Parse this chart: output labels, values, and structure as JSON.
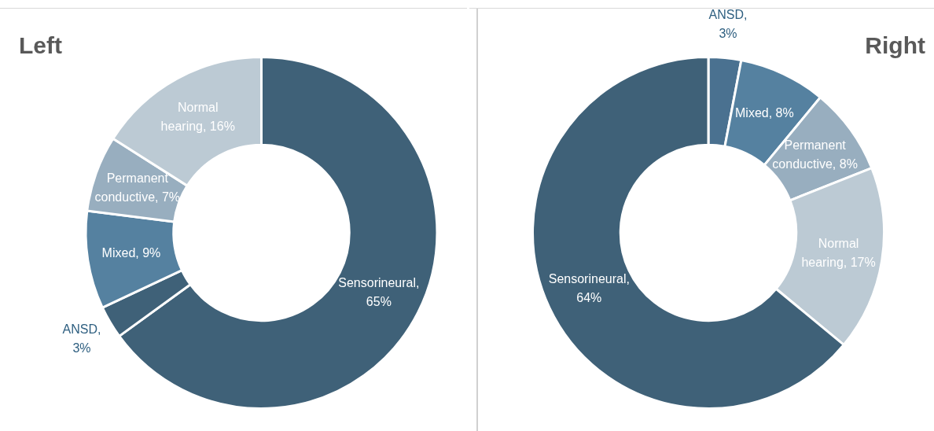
{
  "chart_data": [
    {
      "type": "donut",
      "title": "Left",
      "categories": [
        "Sensorineural",
        "ANSD",
        "Mixed",
        "Permanent conductive",
        "Normal hearing"
      ],
      "values": [
        65,
        3,
        9,
        7,
        16
      ],
      "colors": [
        "#3f6178",
        "#3f6178",
        "#5581a0",
        "#98aebf",
        "#bccad4"
      ],
      "value_labels": [
        ", 65%",
        ", 3%",
        ", 9%",
        ", 7%",
        ", 16%"
      ],
      "legend": false
    },
    {
      "type": "donut",
      "title": "Right",
      "categories": [
        "ANSD",
        "Mixed",
        "Permanent conductive",
        "Normal hearing",
        "Sensorineural"
      ],
      "values": [
        3,
        8,
        8,
        17,
        64
      ],
      "colors": [
        "#4a7190",
        "#5581a0",
        "#98aebf",
        "#bccad4",
        "#3f6178"
      ],
      "value_labels": [
        ", 3%",
        ", 8%",
        ", 8%",
        ", 17%",
        ", 64%"
      ],
      "legend": false
    }
  ]
}
